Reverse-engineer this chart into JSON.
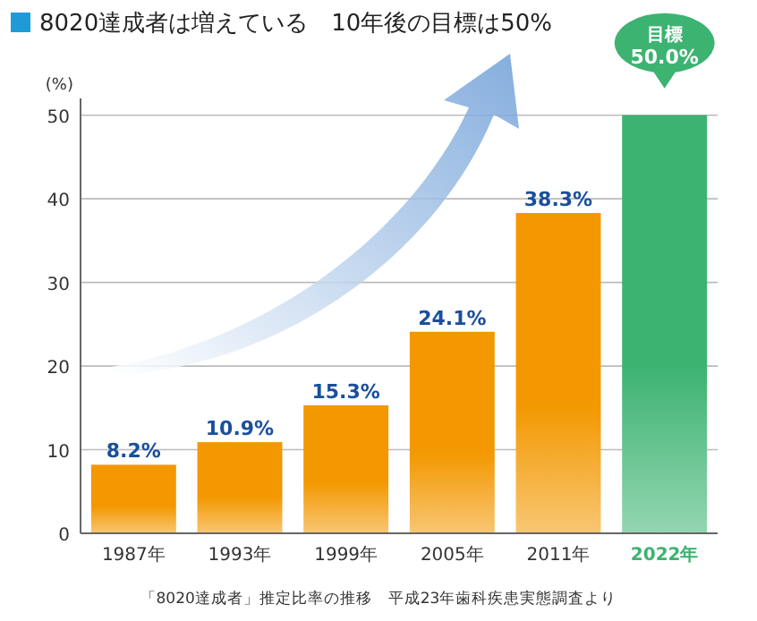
{
  "chart_data": {
    "type": "bar",
    "title": "8020達成者は増えている　10年後の目標は50%",
    "ylabel": "(%)",
    "categories": [
      "1987年",
      "1993年",
      "1999年",
      "2005年",
      "2011年",
      "2022年"
    ],
    "values": [
      8.2,
      10.9,
      15.3,
      24.1,
      38.3,
      50.0
    ],
    "colors": [
      "#f39800",
      "#f39800",
      "#f39800",
      "#f39800",
      "#f39800",
      "#3cb371"
    ],
    "value_labels": [
      "8.2%",
      "10.9%",
      "15.3%",
      "24.1%",
      "38.3%",
      "50.0%"
    ],
    "annotations": [
      "目標",
      "「8020達成者」推定比率の推移　平成23年歯科疾患実態調査より"
    ],
    "ylim": [
      0,
      52
    ],
    "yticks": [
      0,
      10,
      20,
      30,
      40,
      50
    ],
    "grid": "y"
  }
}
